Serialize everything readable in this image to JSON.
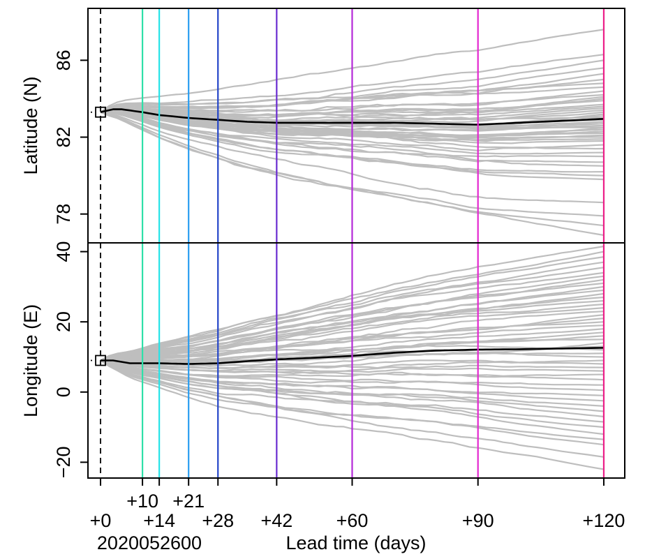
{
  "chart_data": {
    "type": "line",
    "xlabel": "Lead time (days)",
    "x_start_label": "2020052600",
    "xlim": [
      -3,
      125
    ],
    "x_ticks": [
      {
        "value": 0,
        "label": "+0",
        "row": "low"
      },
      {
        "value": 10,
        "label": "+10",
        "row": "high"
      },
      {
        "value": 14,
        "label": "+14",
        "row": "low"
      },
      {
        "value": 21,
        "label": "+21",
        "row": "high"
      },
      {
        "value": 28,
        "label": "+28",
        "row": "low"
      },
      {
        "value": 42,
        "label": "+42",
        "row": "low"
      },
      {
        "value": 60,
        "label": "+60",
        "row": "low"
      },
      {
        "value": 90,
        "label": "+90",
        "row": "low"
      },
      {
        "value": 120,
        "label": "+120",
        "row": "low"
      }
    ],
    "lead_lines": [
      {
        "value": 0,
        "color": "#000000",
        "style": "dashed"
      },
      {
        "value": 10,
        "color": "#2EE0A8",
        "style": "solid"
      },
      {
        "value": 14,
        "color": "#26E3E8",
        "style": "solid"
      },
      {
        "value": 21,
        "color": "#2A9DF0",
        "style": "solid"
      },
      {
        "value": 28,
        "color": "#2445C8",
        "style": "solid"
      },
      {
        "value": 42,
        "color": "#6A2CD0",
        "style": "solid"
      },
      {
        "value": 60,
        "color": "#B52AD8",
        "style": "solid"
      },
      {
        "value": 90,
        "color": "#E428D0",
        "style": "solid"
      },
      {
        "value": 120,
        "color": "#EC1E88",
        "style": "solid"
      }
    ],
    "ensemble_color": "#BEBEBE",
    "mean_color": "#000000",
    "panels": [
      {
        "key": "lat",
        "ylabel": "Latitude (N)",
        "ylim": [
          76.5,
          88.7
        ],
        "yticks": [
          78,
          82,
          86
        ],
        "ytick_labels": [
          "78",
          "82",
          "86"
        ],
        "initial": 83.3,
        "ensemble_members": 50,
        "ensemble_end_values": [
          87.6,
          86.3,
          86.0,
          85.6,
          85.3,
          85.0,
          84.8,
          84.6,
          84.4,
          84.2,
          84.1,
          84.0,
          83.9,
          83.7,
          83.6,
          83.5,
          83.4,
          83.3,
          83.2,
          83.1,
          83.0,
          82.9,
          82.8,
          82.8,
          82.7,
          82.6,
          82.6,
          82.5,
          82.5,
          82.4,
          82.3,
          82.3,
          82.2,
          82.1,
          82.0,
          81.9,
          81.8,
          81.6,
          81.4,
          81.2,
          81.0,
          80.7,
          80.5,
          80.2,
          80.0,
          79.8,
          78.6,
          77.9,
          77.4,
          76.9
        ],
        "mean": {
          "x": [
            0,
            3,
            5,
            10,
            14,
            21,
            28,
            35,
            42,
            50,
            60,
            70,
            80,
            90,
            100,
            110,
            120
          ],
          "y": [
            83.3,
            83.45,
            83.45,
            83.3,
            83.15,
            83.0,
            82.9,
            82.8,
            82.75,
            82.75,
            82.75,
            82.75,
            82.7,
            82.65,
            82.75,
            82.85,
            82.95
          ]
        }
      },
      {
        "key": "lon",
        "ylabel": "Longitude (E)",
        "ylim": [
          -24.5,
          42.5
        ],
        "yticks": [
          -20,
          0,
          20,
          40
        ],
        "ytick_labels": [
          "−20",
          "0",
          "20",
          "40"
        ],
        "initial": 9.0,
        "ensemble_members": 50,
        "ensemble_end_values": [
          41.5,
          40.0,
          38.5,
          37.0,
          35.5,
          34.0,
          33.0,
          32.0,
          31.0,
          30.0,
          29.0,
          28.0,
          27.0,
          26.0,
          25.0,
          24.0,
          23.0,
          22.0,
          21.0,
          20.0,
          19.0,
          18.0,
          17.0,
          16.0,
          15.0,
          14.0,
          13.0,
          12.0,
          11.0,
          10.0,
          9.0,
          8.0,
          7.0,
          6.0,
          5.0,
          3.5,
          2.0,
          0.5,
          -1.0,
          -2.5,
          -4.0,
          -5.5,
          -7.0,
          -8.5,
          -10.0,
          -12.0,
          -13.5,
          -15.0,
          -18.5,
          -22.0
        ],
        "mean": {
          "x": [
            0,
            3,
            7,
            14,
            21,
            28,
            35,
            42,
            50,
            60,
            70,
            80,
            90,
            100,
            110,
            120
          ],
          "y": [
            9.0,
            9.0,
            8.2,
            8.2,
            8.0,
            8.2,
            8.8,
            9.3,
            9.7,
            10.3,
            11.2,
            11.8,
            12.1,
            12.2,
            12.4,
            12.6
          ]
        }
      }
    ]
  }
}
